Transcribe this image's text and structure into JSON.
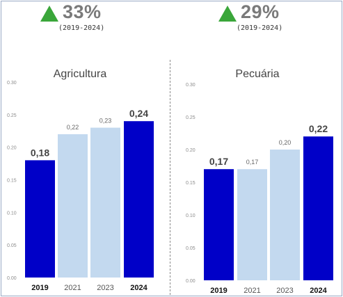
{
  "headlines": [
    {
      "pct": "33%",
      "period": "(2019-2024)"
    },
    {
      "pct": "29%",
      "period": "(2019-2024)"
    }
  ],
  "colors": {
    "dark_bar": "#0000c8",
    "light_bar": "#c3d9ef",
    "up_arrow": "#3aa63a",
    "frame": "#9aa9c4"
  },
  "chart_data": [
    {
      "type": "bar",
      "title": "Agricultura",
      "categories": [
        "2019",
        "2021",
        "2023",
        "2024"
      ],
      "values": [
        0.18,
        0.22,
        0.23,
        0.24
      ],
      "value_labels": [
        "0,18",
        "0,22",
        "0,23",
        "0,24"
      ],
      "emphasized": [
        true,
        false,
        false,
        true
      ],
      "yticks": [
        "0.00",
        "0.05",
        "0.10",
        "0.15",
        "0.20",
        "0.25",
        "0.30"
      ],
      "ylim": [
        0,
        0.3
      ],
      "grid": false
    },
    {
      "type": "bar",
      "title": "Pecuária",
      "categories": [
        "2019",
        "2021",
        "2023",
        "2024"
      ],
      "values": [
        0.17,
        0.17,
        0.2,
        0.22
      ],
      "value_labels": [
        "0,17",
        "0,17",
        "0,20",
        "0,22"
      ],
      "emphasized": [
        true,
        false,
        false,
        true
      ],
      "yticks": [
        "0.00",
        "0.05",
        "0.10",
        "0.15",
        "0.20",
        "0.25",
        "0.30"
      ],
      "ylim": [
        0,
        0.3
      ],
      "grid": false
    }
  ]
}
